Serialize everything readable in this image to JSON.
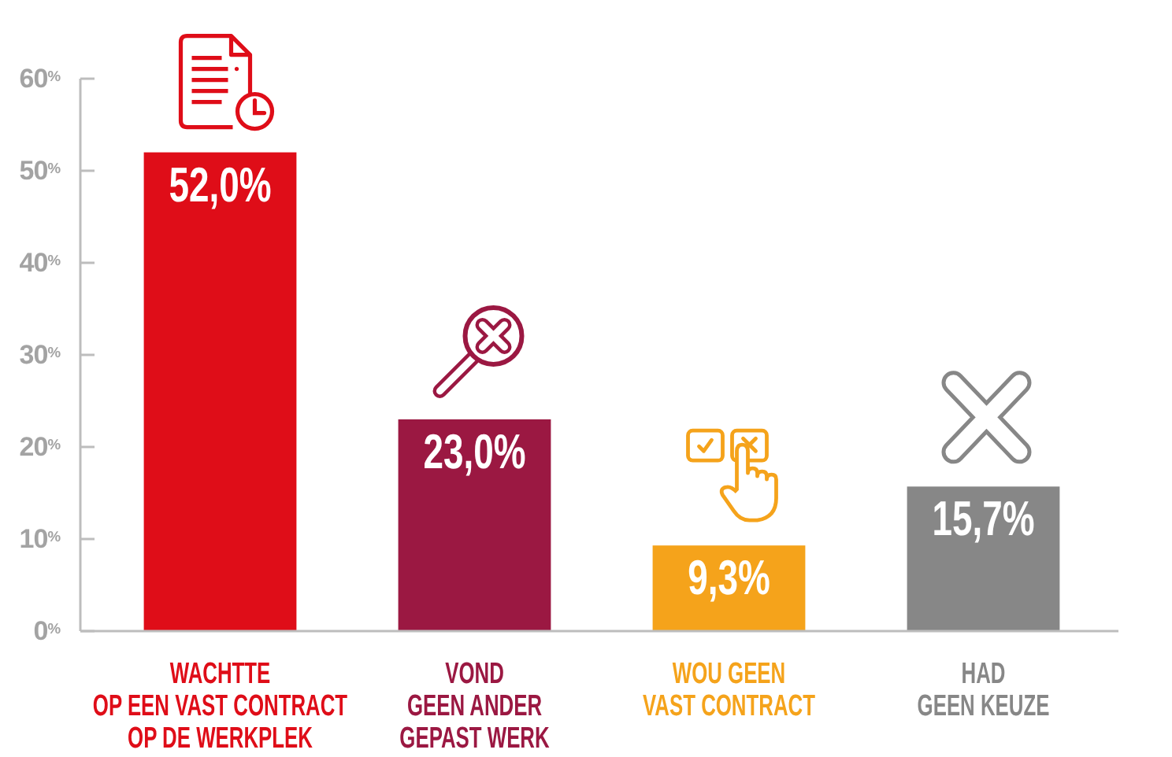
{
  "chart_data": {
    "type": "bar",
    "categories": [
      "WACHTTE\nOP EEN VAST CONTRACT\nOP DE WERKPLEK",
      "VOND\nGEEN ANDER\nGEPAST WERK",
      "WOU GEEN\nVAST CONTRACT",
      "HAD\nGEEN KEUZE"
    ],
    "values": [
      52.0,
      23.0,
      9.3,
      15.7
    ],
    "colors": [
      "#df0d18",
      "#9b1842",
      "#f5a31b",
      "#878787"
    ],
    "value_labels": [
      "52,0%",
      "23,0%",
      "9,3%",
      "15,7%"
    ],
    "ylim": [
      0,
      60
    ],
    "yticks": [
      {
        "value": 0,
        "label": "0$^{%}$"
      },
      {
        "value": 10,
        "label": "10$^{%}$"
      },
      {
        "value": 20,
        "label": "20$^{%}$"
      },
      {
        "value": 30,
        "label": "30$^{%}$"
      },
      {
        "value": 40,
        "label": "40$^{%}$"
      },
      {
        "value": 50,
        "label": "50$^{%}$"
      },
      {
        "value": 60,
        "label": "60$^{%}$"
      }
    ]
  }
}
